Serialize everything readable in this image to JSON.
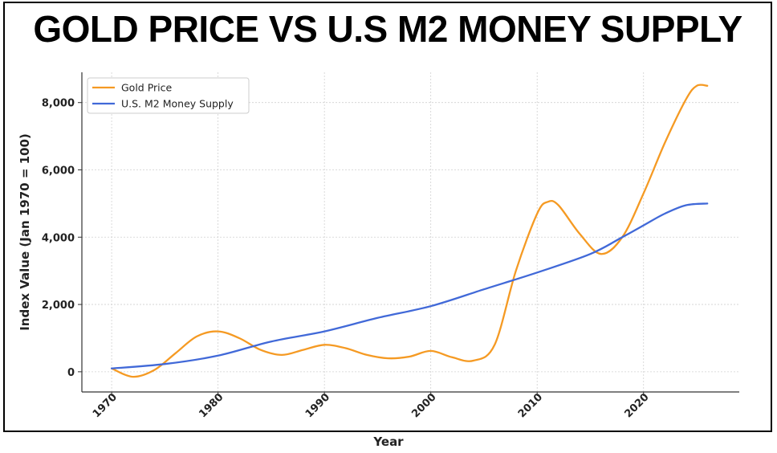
{
  "chart_data": {
    "type": "line",
    "title": "GOLD PRICE VS U.S M2 MONEY SUPPLY",
    "xlabel": "Year",
    "ylabel": "Index Value (Jan 1970 = 100)",
    "xlim": [
      1967.2,
      2029.0
    ],
    "ylim": [
      -600,
      8900
    ],
    "x_ticks": [
      1970,
      1980,
      1990,
      2000,
      2010,
      2020
    ],
    "x_tick_labels": [
      "1970",
      "1980",
      "1990",
      "2000",
      "2010",
      "2020"
    ],
    "y_ticks": [
      0,
      2000,
      4000,
      6000,
      8000
    ],
    "y_tick_labels": [
      "0",
      "2,000",
      "4,000",
      "6,000",
      "8,000"
    ],
    "grid": true,
    "legend_position": "top-left",
    "series": [
      {
        "name": "Gold Price",
        "color": "#f59a23",
        "x": [
          1970,
          1972,
          1974,
          1976,
          1978,
          1980,
          1982,
          1984,
          1986,
          1988,
          1990,
          1992,
          1994,
          1996,
          1998,
          2000,
          2002,
          2004,
          2006,
          2008,
          2010,
          2011,
          2012,
          2014,
          2016,
          2018,
          2020,
          2022,
          2024,
          2025,
          2026
        ],
        "y": [
          100,
          -150,
          50,
          550,
          1050,
          1200,
          1000,
          650,
          500,
          650,
          800,
          700,
          500,
          400,
          450,
          620,
          430,
          330,
          800,
          3000,
          4700,
          5050,
          4950,
          4100,
          3500,
          4000,
          5300,
          6800,
          8100,
          8500,
          8500
        ]
      },
      {
        "name": "U.S. M2 Money Supply",
        "color": "#4169d8",
        "x": [
          1970,
          1975,
          1980,
          1985,
          1990,
          1995,
          2000,
          2005,
          2010,
          2015,
          2018,
          2020,
          2022,
          2024,
          2026
        ],
        "y": [
          100,
          230,
          480,
          900,
          1200,
          1600,
          1950,
          2450,
          2950,
          3500,
          4000,
          4350,
          4700,
          4950,
          5000
        ]
      }
    ]
  }
}
